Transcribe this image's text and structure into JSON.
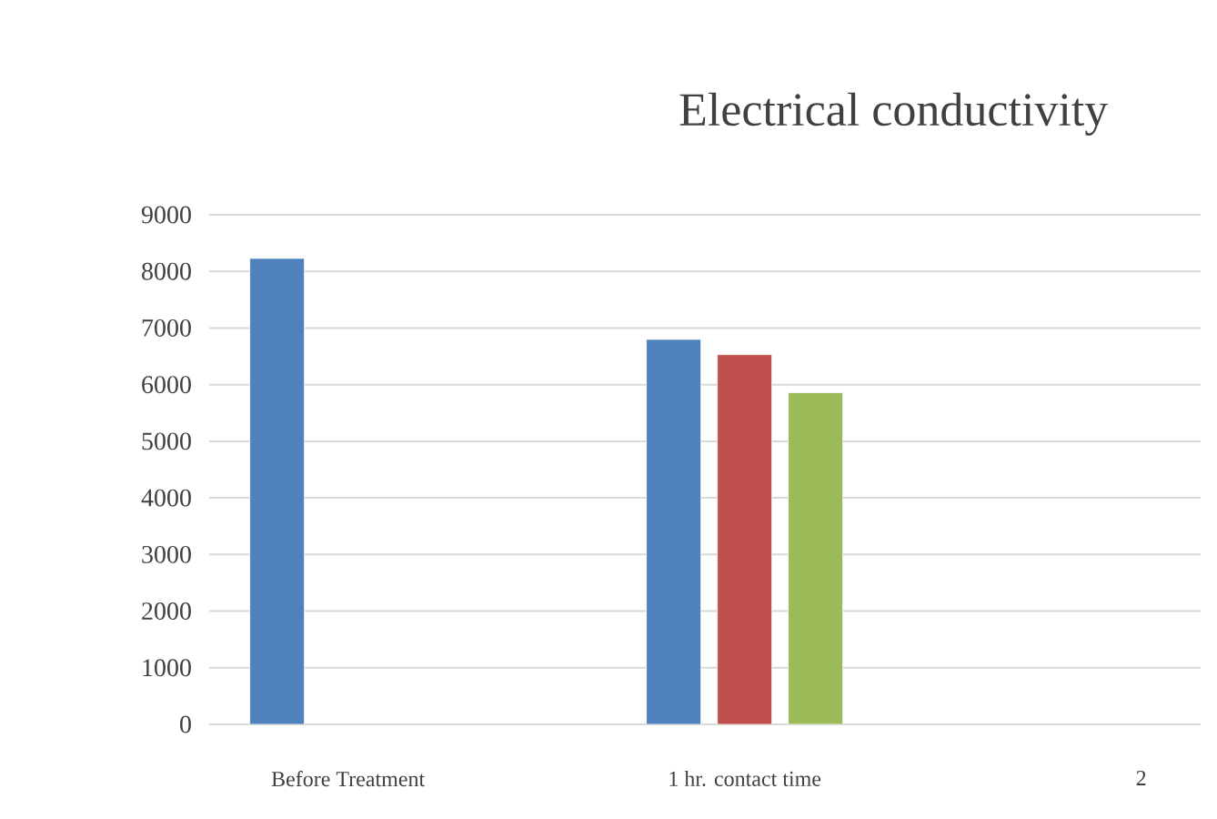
{
  "chart_data": {
    "type": "bar",
    "title": "Electrical conductivity",
    "categories": [
      "Before Treatment",
      "1 hr. contact time",
      "2"
    ],
    "series": [
      {
        "color": "#4f81bd",
        "values": [
          8230,
          6800,
          null
        ]
      },
      {
        "color": "#c0504d",
        "values": [
          null,
          6530,
          null
        ]
      },
      {
        "color": "#9bbb59",
        "values": [
          null,
          5860,
          null
        ]
      }
    ],
    "ylim": [
      0,
      9000
    ],
    "yticks": [
      0,
      1000,
      2000,
      3000,
      4000,
      5000,
      6000,
      7000,
      8000,
      9000
    ],
    "grid": "y"
  }
}
